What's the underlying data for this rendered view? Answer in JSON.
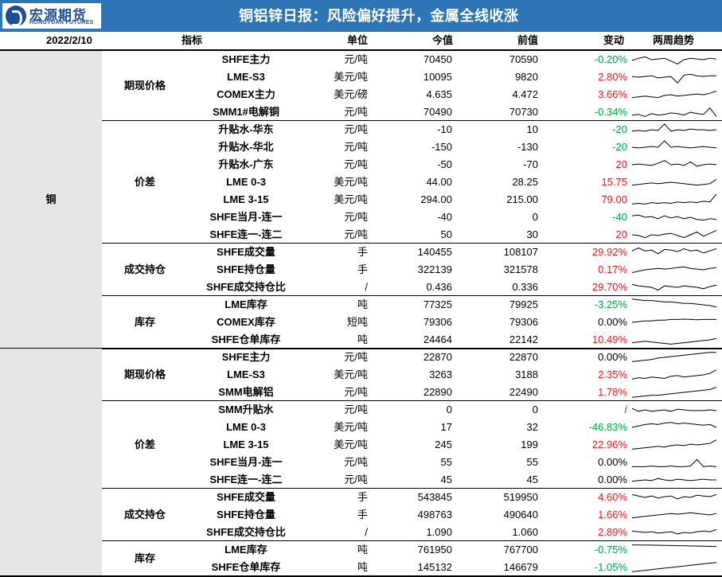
{
  "header": {
    "logo_cn": "宏源期货",
    "logo_en": "HONGYUAN FUTURES",
    "title": "铜铝锌日报：风险偏好提升，金属全线收涨"
  },
  "columns": {
    "date": "2022/2/10",
    "indicator": "指标",
    "unit": "单位",
    "current": "今值",
    "previous": "前值",
    "change": "变动",
    "trend": "两周趋势"
  },
  "colors": {
    "header_bg": "#2e75b6",
    "up": "#e02020",
    "down": "#00a040",
    "metal_bg": "#e6e6e6"
  },
  "sections": [
    {
      "metal": "铜",
      "groups": [
        {
          "category": "期现价格",
          "rows": [
            {
              "name": "SHFE主力",
              "unit": "元/吨",
              "current": "70450",
              "previous": "70590",
              "change": "-0.20%",
              "dir": "neg",
              "spark": [
                0.45,
                0.6,
                0.7,
                0.5,
                0.55,
                0.6,
                0.4,
                0.2,
                0.5,
                0.6,
                0.55,
                0.5,
                0.6,
                0.55
              ]
            },
            {
              "name": "LME-S3",
              "unit": "美元/吨",
              "current": "10095",
              "previous": "9820",
              "change": "2.80%",
              "dir": "pos",
              "spark": [
                0.55,
                0.5,
                0.55,
                0.6,
                0.45,
                0.5,
                0.55,
                0.1,
                0.65,
                0.7,
                0.6,
                0.55,
                0.6,
                0.6
              ]
            },
            {
              "name": "COMEX主力",
              "unit": "美元/磅",
              "current": "4.635",
              "previous": "4.472",
              "change": "3.66%",
              "dir": "pos",
              "spark": [
                0.3,
                0.35,
                0.4,
                0.35,
                0.3,
                0.45,
                0.5,
                0.4,
                0.45,
                0.5,
                0.55,
                0.5,
                0.6,
                0.75
              ]
            },
            {
              "name": "SMM1#电解铜",
              "unit": "元/吨",
              "current": "70490",
              "previous": "70730",
              "change": "-0.34%",
              "dir": "neg",
              "spark": [
                0.3,
                0.35,
                0.2,
                0.4,
                0.3,
                0.35,
                0.45,
                0.4,
                0.3,
                0.5,
                0.4,
                0.35,
                0.8,
                0.2
              ]
            }
          ]
        },
        {
          "category": "价差",
          "rows": [
            {
              "name": "升贴水-华东",
              "unit": "元/吨",
              "current": "-10",
              "previous": "10",
              "change": "-20",
              "dir": "neg",
              "spark": [
                0.4,
                0.45,
                0.4,
                0.5,
                0.45,
                0.9,
                0.4,
                0.5,
                0.45,
                0.55,
                0.5,
                0.5,
                0.45,
                0.5
              ]
            },
            {
              "name": "升贴水-华北",
              "unit": "元/吨",
              "current": "-150",
              "previous": "-130",
              "change": "-20",
              "dir": "neg",
              "spark": [
                0.5,
                0.45,
                0.5,
                0.55,
                0.5,
                0.95,
                0.5,
                0.55,
                0.5,
                0.45,
                0.5,
                0.55,
                0.5,
                0.45
              ]
            },
            {
              "name": "升贴水-广东",
              "unit": "元/吨",
              "current": "-50",
              "previous": "-70",
              "change": "20",
              "dir": "pos",
              "spark": [
                0.5,
                0.55,
                0.5,
                0.45,
                0.6,
                0.8,
                0.5,
                0.55,
                0.45,
                0.7,
                0.4,
                0.5,
                0.55,
                0.5
              ]
            },
            {
              "name": "LME 0-3",
              "unit": "美元/吨",
              "current": "44.00",
              "previous": "28.25",
              "change": "15.75",
              "dir": "pos",
              "spark": [
                0.3,
                0.35,
                0.4,
                0.45,
                0.4,
                0.45,
                0.5,
                0.45,
                0.4,
                0.35,
                0.3,
                0.35,
                0.4,
                0.7
              ]
            },
            {
              "name": "LME 3-15",
              "unit": "美元/吨",
              "current": "294.00",
              "previous": "215.00",
              "change": "79.00",
              "dir": "pos",
              "spark": [
                0.2,
                0.25,
                0.2,
                0.3,
                0.25,
                0.3,
                0.25,
                0.35,
                0.3,
                0.35,
                0.3,
                0.4,
                0.35,
                0.9
              ]
            },
            {
              "name": "SHFE当月-连一",
              "unit": "元/吨",
              "current": "-40",
              "previous": "0",
              "change": "-40",
              "dir": "neg",
              "spark": [
                0.6,
                0.65,
                0.5,
                0.55,
                0.4,
                0.6,
                0.45,
                0.55,
                0.4,
                0.5,
                0.35,
                0.3,
                0.4,
                0.35
              ]
            },
            {
              "name": "SHFE连一-连二",
              "unit": "元/吨",
              "current": "50",
              "previous": "30",
              "change": "20",
              "dir": "pos",
              "spark": [
                0.5,
                0.45,
                0.3,
                0.5,
                0.45,
                0.55,
                0.6,
                0.45,
                0.3,
                0.5,
                0.7,
                0.4,
                0.6,
                0.8
              ]
            }
          ]
        },
        {
          "category": "成交持仓",
          "rows": [
            {
              "name": "SHFE成交量",
              "unit": "手",
              "current": "140455",
              "previous": "108107",
              "change": "29.92%",
              "dir": "pos",
              "spark": [
                0.6,
                0.8,
                0.6,
                0.65,
                0.4,
                0.7,
                0.65,
                0.55,
                0.75,
                0.6,
                0.65,
                0.45,
                0.6,
                0.75
              ]
            },
            {
              "name": "SHFE持仓量",
              "unit": "手",
              "current": "322139",
              "previous": "321578",
              "change": "0.17%",
              "dir": "pos",
              "spark": [
                0.3,
                0.4,
                0.5,
                0.55,
                0.6,
                0.55,
                0.6,
                0.65,
                0.7,
                0.6,
                0.55,
                0.5,
                0.6,
                0.65
              ]
            },
            {
              "name": "SHFE成交持仓比",
              "unit": "/",
              "current": "0.436",
              "previous": "0.336",
              "change": "29.70%",
              "dir": "pos",
              "spark": [
                0.7,
                0.6,
                0.55,
                0.5,
                0.3,
                0.6,
                0.55,
                0.5,
                0.6,
                0.55,
                0.5,
                0.4,
                0.55,
                0.65
              ]
            }
          ]
        },
        {
          "category": "库存",
          "rows": [
            {
              "name": "LME库存",
              "unit": "吨",
              "current": "77325",
              "previous": "79925",
              "change": "-3.25%",
              "dir": "neg",
              "spark": [
                0.9,
                0.85,
                0.8,
                0.8,
                0.75,
                0.7,
                0.7,
                0.65,
                0.6,
                0.6,
                0.55,
                0.5,
                0.45,
                0.35
              ]
            },
            {
              "name": "COMEX库存",
              "unit": "短吨",
              "current": "79306",
              "previous": "79306",
              "change": "0.00%",
              "dir": "zero",
              "spark": [
                0.5,
                0.55,
                0.6,
                0.6,
                0.65,
                0.65,
                0.7,
                0.7,
                0.72,
                0.7,
                0.68,
                0.7,
                0.7,
                0.7
              ]
            },
            {
              "name": "SHFE仓单库存",
              "unit": "吨",
              "current": "24464",
              "previous": "22142",
              "change": "10.49%",
              "dir": "pos",
              "spark": [
                0.3,
                0.35,
                0.4,
                0.35,
                0.3,
                0.25,
                0.2,
                0.25,
                0.3,
                0.35,
                0.4,
                0.45,
                0.5,
                0.6
              ]
            }
          ]
        }
      ]
    },
    {
      "metal": "",
      "groups": [
        {
          "category": "期现价格",
          "rows": [
            {
              "name": "SHFE主力",
              "unit": "元/吨",
              "current": "22870",
              "previous": "22870",
              "change": "0.00%",
              "dir": "zero",
              "spark": [
                0.2,
                0.25,
                0.3,
                0.35,
                0.45,
                0.5,
                0.55,
                0.6,
                0.65,
                0.7,
                0.75,
                0.8,
                0.85,
                0.85
              ]
            },
            {
              "name": "LME-S3",
              "unit": "美元/吨",
              "current": "3263",
              "previous": "3188",
              "change": "2.35%",
              "dir": "pos",
              "spark": [
                0.2,
                0.3,
                0.25,
                0.35,
                0.3,
                0.25,
                0.4,
                0.45,
                0.35,
                0.4,
                0.45,
                0.5,
                0.6,
                0.85
              ]
            },
            {
              "name": "SMM电解铝",
              "unit": "元/吨",
              "current": "22890",
              "previous": "22490",
              "change": "1.78%",
              "dir": "pos",
              "spark": [
                0.15,
                0.2,
                0.25,
                0.3,
                0.3,
                0.35,
                0.4,
                0.45,
                0.5,
                0.55,
                0.6,
                0.65,
                0.7,
                0.85
              ]
            }
          ]
        },
        {
          "category": "价差",
          "rows": [
            {
              "name": "SMM升贴水",
              "unit": "元/吨",
              "current": "0",
              "previous": "0",
              "change": "/",
              "dir": "pos",
              "spark": [
                0.6,
                0.4,
                0.5,
                0.4,
                0.45,
                0.5,
                0.4,
                0.55,
                0.5,
                0.45,
                0.45,
                0.45,
                0.5,
                0.45
              ]
            },
            {
              "name": "LME 0-3",
              "unit": "美元/吨",
              "current": "17",
              "previous": "32",
              "change": "-46.83%",
              "dir": "neg",
              "spark": [
                0.5,
                0.6,
                0.7,
                0.75,
                0.7,
                0.8,
                0.85,
                0.75,
                0.8,
                0.75,
                0.7,
                0.65,
                0.7,
                0.5
              ]
            },
            {
              "name": "LME 3-15",
              "unit": "美元/吨",
              "current": "245",
              "previous": "199",
              "change": "22.96%",
              "dir": "pos",
              "spark": [
                0.2,
                0.25,
                0.3,
                0.35,
                0.4,
                0.35,
                0.45,
                0.5,
                0.45,
                0.55,
                0.5,
                0.55,
                0.6,
                0.85
              ]
            },
            {
              "name": "SHFE当月-连一",
              "unit": "元/吨",
              "current": "55",
              "previous": "55",
              "change": "0.00%",
              "dir": "zero",
              "spark": [
                0.2,
                0.2,
                0.2,
                0.25,
                0.2,
                0.2,
                0.25,
                0.2,
                0.2,
                0.25,
                0.7,
                0.2,
                0.25,
                0.2
              ]
            },
            {
              "name": "SHFE连一-连二",
              "unit": "元/吨",
              "current": "45",
              "previous": "45",
              "change": "0.00%",
              "dir": "zero",
              "spark": [
                0.4,
                0.45,
                0.5,
                0.45,
                0.6,
                0.5,
                0.45,
                0.55,
                0.5,
                0.45,
                0.5,
                0.55,
                0.5,
                0.5
              ]
            }
          ]
        },
        {
          "category": "成交持仓",
          "rows": [
            {
              "name": "SHFE成交量",
              "unit": "手",
              "current": "543845",
              "previous": "519950",
              "change": "4.60%",
              "dir": "pos",
              "spark": [
                0.7,
                0.6,
                0.5,
                0.6,
                0.45,
                0.55,
                0.6,
                0.4,
                0.55,
                0.5,
                0.65,
                0.6,
                0.55,
                0.7
              ]
            },
            {
              "name": "SHFE持仓量",
              "unit": "手",
              "current": "498763",
              "previous": "490640",
              "change": "1.66%",
              "dir": "pos",
              "spark": [
                0.3,
                0.35,
                0.4,
                0.45,
                0.5,
                0.55,
                0.6,
                0.55,
                0.6,
                0.65,
                0.6,
                0.55,
                0.5,
                0.6
              ]
            },
            {
              "name": "SHFE成交持仓比",
              "unit": "/",
              "current": "1.090",
              "previous": "1.060",
              "change": "2.89%",
              "dir": "pos",
              "spark": [
                0.6,
                0.55,
                0.5,
                0.55,
                0.45,
                0.5,
                0.55,
                0.4,
                0.5,
                0.45,
                0.55,
                0.6,
                0.55,
                0.7
              ]
            }
          ]
        },
        {
          "category": "库存",
          "rows": [
            {
              "name": "LME库存",
              "unit": "吨",
              "current": "761950",
              "previous": "767700",
              "change": "-0.75%",
              "dir": "neg",
              "spark": [
                0.85,
                0.85,
                0.84,
                0.84,
                0.83,
                0.82,
                0.81,
                0.8,
                0.79,
                0.78,
                0.77,
                0.76,
                0.75,
                0.74
              ]
            },
            {
              "name": "SHFE仓单库存",
              "unit": "吨",
              "current": "145132",
              "previous": "146679",
              "change": "-1.05%",
              "dir": "neg",
              "spark": [
                0.2,
                0.25,
                0.3,
                0.35,
                0.4,
                0.45,
                0.5,
                0.55,
                0.6,
                0.65,
                0.7,
                0.75,
                0.8,
                0.85
              ]
            }
          ]
        }
      ]
    }
  ]
}
